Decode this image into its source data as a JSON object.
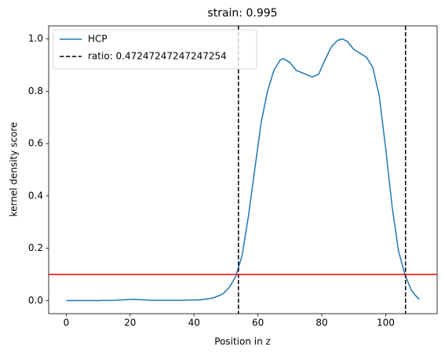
{
  "chart_data": {
    "type": "line",
    "title": "strain: 0.995",
    "x_label": "Position in z",
    "y_label": "kernel density score",
    "xlim": [
      -5.5,
      116.1
    ],
    "ylim": [
      -0.05,
      1.05
    ],
    "xticks": [
      0,
      20,
      40,
      60,
      80,
      100
    ],
    "yticks": [
      {
        "value": 0,
        "label": "0.0"
      },
      {
        "value": 0.2,
        "label": "0.2"
      },
      {
        "value": 0.4,
        "label": "0.4"
      },
      {
        "value": 0.6,
        "label": "0.6"
      },
      {
        "value": 0.8,
        "label": "0.8"
      },
      {
        "value": 1,
        "label": "1.0"
      }
    ],
    "legend": "upper left",
    "series": [
      {
        "name": "HCP",
        "color": "#1f77b4",
        "x": [
          0,
          10,
          15,
          21,
          27,
          35,
          42,
          46,
          49,
          51,
          53,
          55,
          57,
          59,
          61,
          63,
          65,
          67,
          68,
          70,
          72,
          75,
          77,
          79,
          81,
          83,
          85,
          86.5,
          88,
          90,
          92,
          94,
          96,
          98,
          100,
          102,
          104,
          106,
          108,
          110,
          110.6
        ],
        "values": [
          0,
          0,
          0.001,
          0.005,
          0.001,
          0.001,
          0.003,
          0.01,
          0.025,
          0.05,
          0.09,
          0.17,
          0.32,
          0.5,
          0.68,
          0.8,
          0.88,
          0.92,
          0.925,
          0.91,
          0.88,
          0.865,
          0.855,
          0.865,
          0.92,
          0.97,
          0.995,
          1.0,
          0.99,
          0.96,
          0.945,
          0.93,
          0.89,
          0.78,
          0.58,
          0.36,
          0.19,
          0.1,
          0.04,
          0.01,
          0.006
        ]
      }
    ],
    "vlines": {
      "name": "ratio: 0.47247247247247254",
      "color": "#000000",
      "style": "dashed",
      "x": [
        53.9,
        106.2
      ]
    },
    "hline": {
      "y": 0.1,
      "color": "#ff0000"
    }
  }
}
